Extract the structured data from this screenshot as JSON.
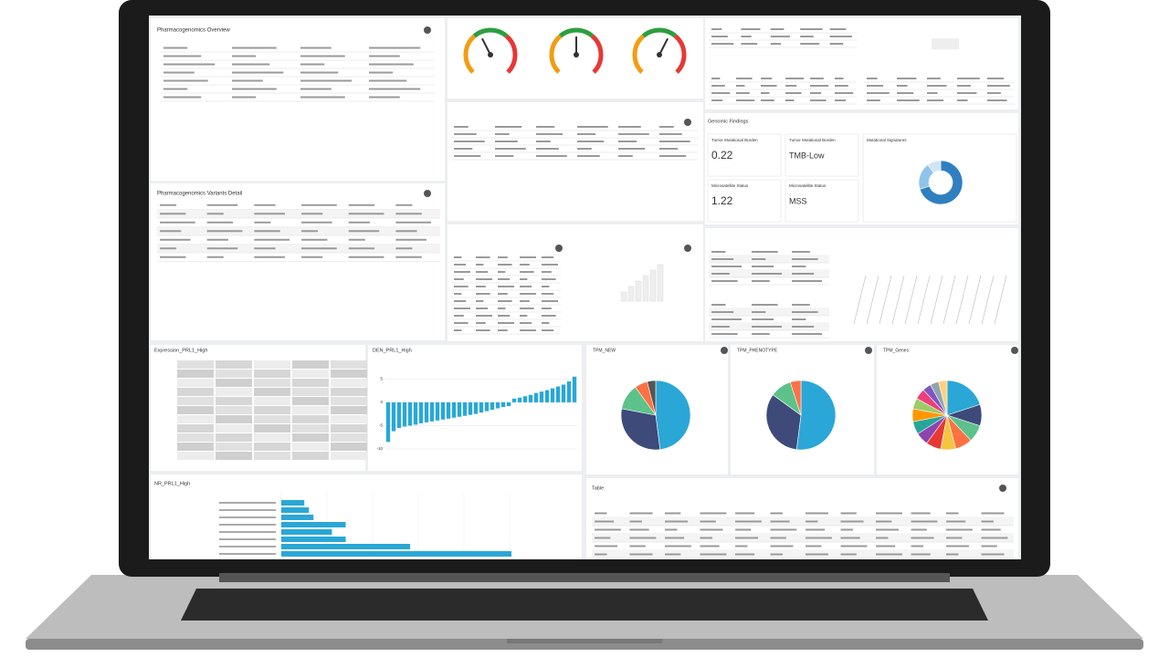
{
  "panels": {
    "pgx_overview": {
      "title": "Pharmacogenomics Overview"
    },
    "pgx_variants": {
      "title": "Pharmacogenomics Variants Detail"
    },
    "genomic_findings": {
      "title": "Genomic Findings",
      "tmb_label": "Tumor Mutational Burden",
      "tmb_value": 0.22,
      "tmb_status_label": "Tumor Mutational Burden",
      "tmb_status": "TMB-Low",
      "msi_label": "Microsatellite Status",
      "msi_value": 1.22,
      "msi_status_label": "Microsatellite Status",
      "msi_status": "MSS",
      "signatures_label": "Mutational Signatures"
    },
    "expression": {
      "title": "Expression_PRL1_High"
    },
    "table": {
      "title": "Table"
    }
  },
  "charts": {
    "gauges": {
      "type": "gauge",
      "lim": [
        0,
        100
      ],
      "values": [
        40,
        50,
        60
      ]
    },
    "den": {
      "type": "bar",
      "title": "DEN_PRL1_High",
      "color": "#2aa7d6",
      "values": [
        -8.5,
        -6.2,
        -5.5,
        -5.2,
        -5.0,
        -4.8,
        -4.5,
        -4.3,
        -4.1,
        -3.9,
        -3.7,
        -3.5,
        -3.3,
        -3.1,
        -2.9,
        -2.7,
        -2.5,
        -2.2,
        -1.9,
        -1.6,
        -1.3,
        -1.0,
        -0.8,
        0.8,
        1.0,
        1.3,
        1.6,
        2.0,
        2.3,
        2.6,
        3.0,
        3.4,
        3.8,
        4.5,
        5.5
      ],
      "ylim": [
        -10,
        8
      ],
      "yticks": [
        -10,
        -5,
        0,
        5
      ],
      "grid": true
    },
    "nr": {
      "type": "hbar",
      "title": "NR_PRL1_High",
      "color": "#2aa7d6",
      "values": [
        10,
        12,
        14,
        28,
        22,
        28,
        56,
        100
      ],
      "xlim": [
        0,
        100
      ]
    },
    "pies": [
      {
        "type": "pie",
        "title": "TPM_NEW",
        "colors": [
          "#2aa7d6",
          "#3d4a7a",
          "#5cc28a",
          "#ff7043",
          "#555555"
        ],
        "values": [
          48,
          30,
          12,
          6,
          4
        ]
      },
      {
        "type": "pie",
        "title": "TPM_PHENOTYPE",
        "colors": [
          "#2aa7d6",
          "#3d4a7a",
          "#5cc28a",
          "#ff7043"
        ],
        "values": [
          52,
          33,
          10,
          5
        ]
      },
      {
        "type": "pie",
        "title": "TPM_Genes",
        "colors": [
          "#2aa7d6",
          "#3d4a7a",
          "#5cc28a",
          "#ff7043",
          "#f4c542",
          "#e53935",
          "#8e44ad",
          "#26a69a",
          "#ff9800",
          "#9ccc65",
          "#ec407a",
          "#7e57c2",
          "#90a4ae",
          "#ffd180"
        ],
        "values": [
          20,
          10,
          8,
          8,
          7,
          7,
          6,
          6,
          6,
          5,
          5,
          4,
          4,
          4
        ]
      }
    ],
    "donut": {
      "type": "donut",
      "colors": [
        "#2f7fc1",
        "#8fc3ea",
        "#cfe5f5"
      ],
      "values": [
        70,
        20,
        10
      ]
    }
  }
}
